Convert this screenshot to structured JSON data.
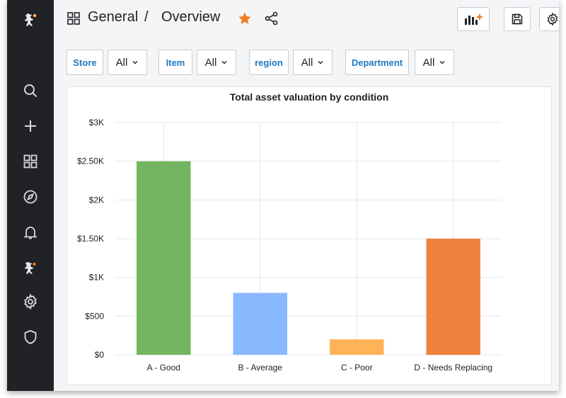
{
  "breadcrumb": {
    "folder": "General",
    "separator": "/",
    "dashboard": "Overview"
  },
  "sidebar": {
    "items": [
      {
        "name": "logo-icon"
      },
      {
        "name": "search-icon"
      },
      {
        "name": "plus-icon"
      },
      {
        "name": "dashboards-icon"
      },
      {
        "name": "explore-icon"
      },
      {
        "name": "bell-icon"
      },
      {
        "name": "app-icon"
      },
      {
        "name": "gear-icon"
      },
      {
        "name": "shield-icon"
      }
    ]
  },
  "toolbar": {
    "buttons": [
      "add-panel-icon",
      "save-icon",
      "settings-icon"
    ]
  },
  "filters": [
    {
      "label": "Store",
      "value": "All"
    },
    {
      "label": "Item",
      "value": "All"
    },
    {
      "label": "region",
      "value": "All"
    },
    {
      "label": "Department",
      "value": "All"
    }
  ],
  "colors": {
    "accent": "#ef7d22",
    "link": "#1f78c1",
    "sidebar": "#202226"
  },
  "chart_data": {
    "type": "bar",
    "title": "Total asset valuation by condition",
    "categories": [
      "A - Good",
      "B - Average",
      "C - Poor",
      "D - Needs Replacing"
    ],
    "values": [
      2500,
      800,
      200,
      1500
    ],
    "colors": [
      "#73b65f",
      "#8ab8ff",
      "#ffb357",
      "#f0823e"
    ],
    "ylim": [
      0,
      3000
    ],
    "yticks": [
      0,
      500,
      1000,
      1500,
      2000,
      2500,
      3000
    ],
    "ytick_labels": [
      "$0",
      "$500",
      "$1K",
      "$1.50K",
      "$2K",
      "$2.50K",
      "$3K"
    ],
    "grid": true,
    "xlabel": "",
    "ylabel": ""
  }
}
